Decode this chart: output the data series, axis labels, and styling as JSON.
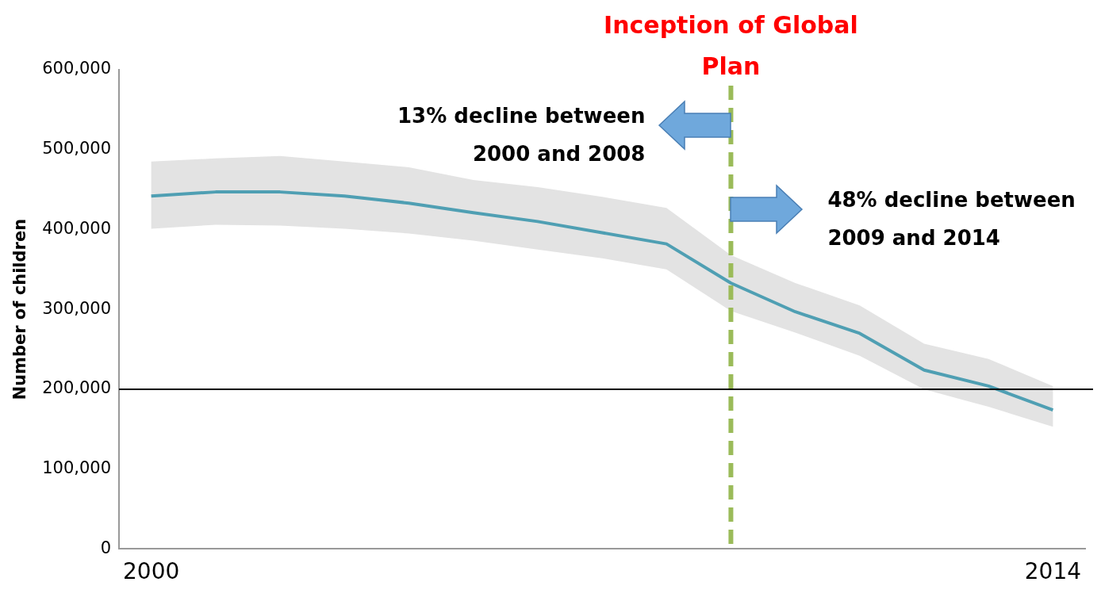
{
  "chart_data": {
    "type": "line",
    "ylabel": "Number of children",
    "x": [
      2000,
      2001,
      2002,
      2003,
      2004,
      2005,
      2006,
      2007,
      2008,
      2009,
      2010,
      2011,
      2012,
      2013,
      2014
    ],
    "xlim": [
      1999.5,
      2014.5
    ],
    "xticks": [
      2000,
      2014
    ],
    "ylim": [
      0,
      600000
    ],
    "yticks": [
      0,
      {
        "value": 100000,
        "label": "100,000"
      },
      {
        "value": 200000,
        "label": "200,000"
      },
      {
        "value": 300000,
        "label": "300,000"
      },
      {
        "value": 400000,
        "label": "400,000"
      },
      {
        "value": 500000,
        "label": "500,000"
      },
      {
        "value": 600000,
        "label": "600,000"
      }
    ],
    "grid": false,
    "legend": false,
    "series": [
      {
        "color": "#4f9fb3",
        "values": [
          442000,
          447000,
          447000,
          442000,
          433000,
          421000,
          410000,
          396000,
          382000,
          333000,
          297000,
          270000,
          224000,
          204000,
          174000
        ],
        "lower": [
          401000,
          406000,
          405000,
          401000,
          395000,
          386000,
          375000,
          364000,
          350000,
          298000,
          271000,
          242000,
          200000,
          178000,
          153000
        ],
        "upper": [
          485000,
          489000,
          492000,
          485000,
          478000,
          462000,
          453000,
          441000,
          427000,
          368000,
          333000,
          305000,
          257000,
          238000,
          204000
        ]
      }
    ],
    "ref_lines": [
      {
        "axis": "y",
        "value": 200000,
        "color": "#000000",
        "line_style": "solid"
      },
      {
        "axis": "x",
        "value": 2009,
        "label": "Inception of Global Plan",
        "color": "#9bbb59",
        "line_style": "dashed"
      }
    ],
    "annotations": [
      "13% decline between 2000 and 2008",
      "48% decline between 2009 and 2014"
    ]
  }
}
